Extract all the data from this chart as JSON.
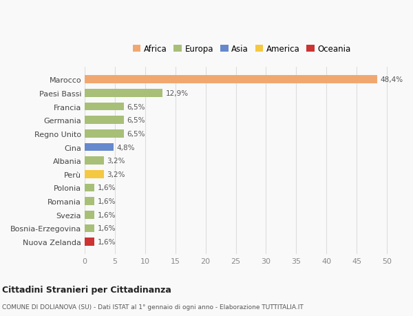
{
  "categories": [
    "Nuova Zelanda",
    "Bosnia-Erzegovina",
    "Svezia",
    "Romania",
    "Polonia",
    "Perù",
    "Albania",
    "Cina",
    "Regno Unito",
    "Germania",
    "Francia",
    "Paesi Bassi",
    "Marocco"
  ],
  "values": [
    1.6,
    1.6,
    1.6,
    1.6,
    1.6,
    3.2,
    3.2,
    4.8,
    6.5,
    6.5,
    6.5,
    12.9,
    48.4
  ],
  "labels": [
    "1,6%",
    "1,6%",
    "1,6%",
    "1,6%",
    "1,6%",
    "3,2%",
    "3,2%",
    "4,8%",
    "6,5%",
    "6,5%",
    "6,5%",
    "12,9%",
    "48,4%"
  ],
  "colors": [
    "#cc3333",
    "#a8bf78",
    "#a8bf78",
    "#a8bf78",
    "#a8bf78",
    "#f5c842",
    "#a8bf78",
    "#6688cc",
    "#a8bf78",
    "#a8bf78",
    "#a8bf78",
    "#a8bf78",
    "#f0a870"
  ],
  "legend_labels": [
    "Africa",
    "Europa",
    "Asia",
    "America",
    "Oceania"
  ],
  "legend_colors": [
    "#f0a870",
    "#a8bf78",
    "#6688cc",
    "#f5c842",
    "#cc3333"
  ],
  "xlim": [
    0,
    52
  ],
  "xticks": [
    0,
    5,
    10,
    15,
    20,
    25,
    30,
    35,
    40,
    45,
    50
  ],
  "title1": "Cittadini Stranieri per Cittadinanza",
  "title2": "COMUNE DI DOLIANOVA (SU) - Dati ISTAT al 1° gennaio di ogni anno - Elaborazione TUTTITALIA.IT",
  "bg_color": "#f9f9f9",
  "grid_color": "#dddddd"
}
